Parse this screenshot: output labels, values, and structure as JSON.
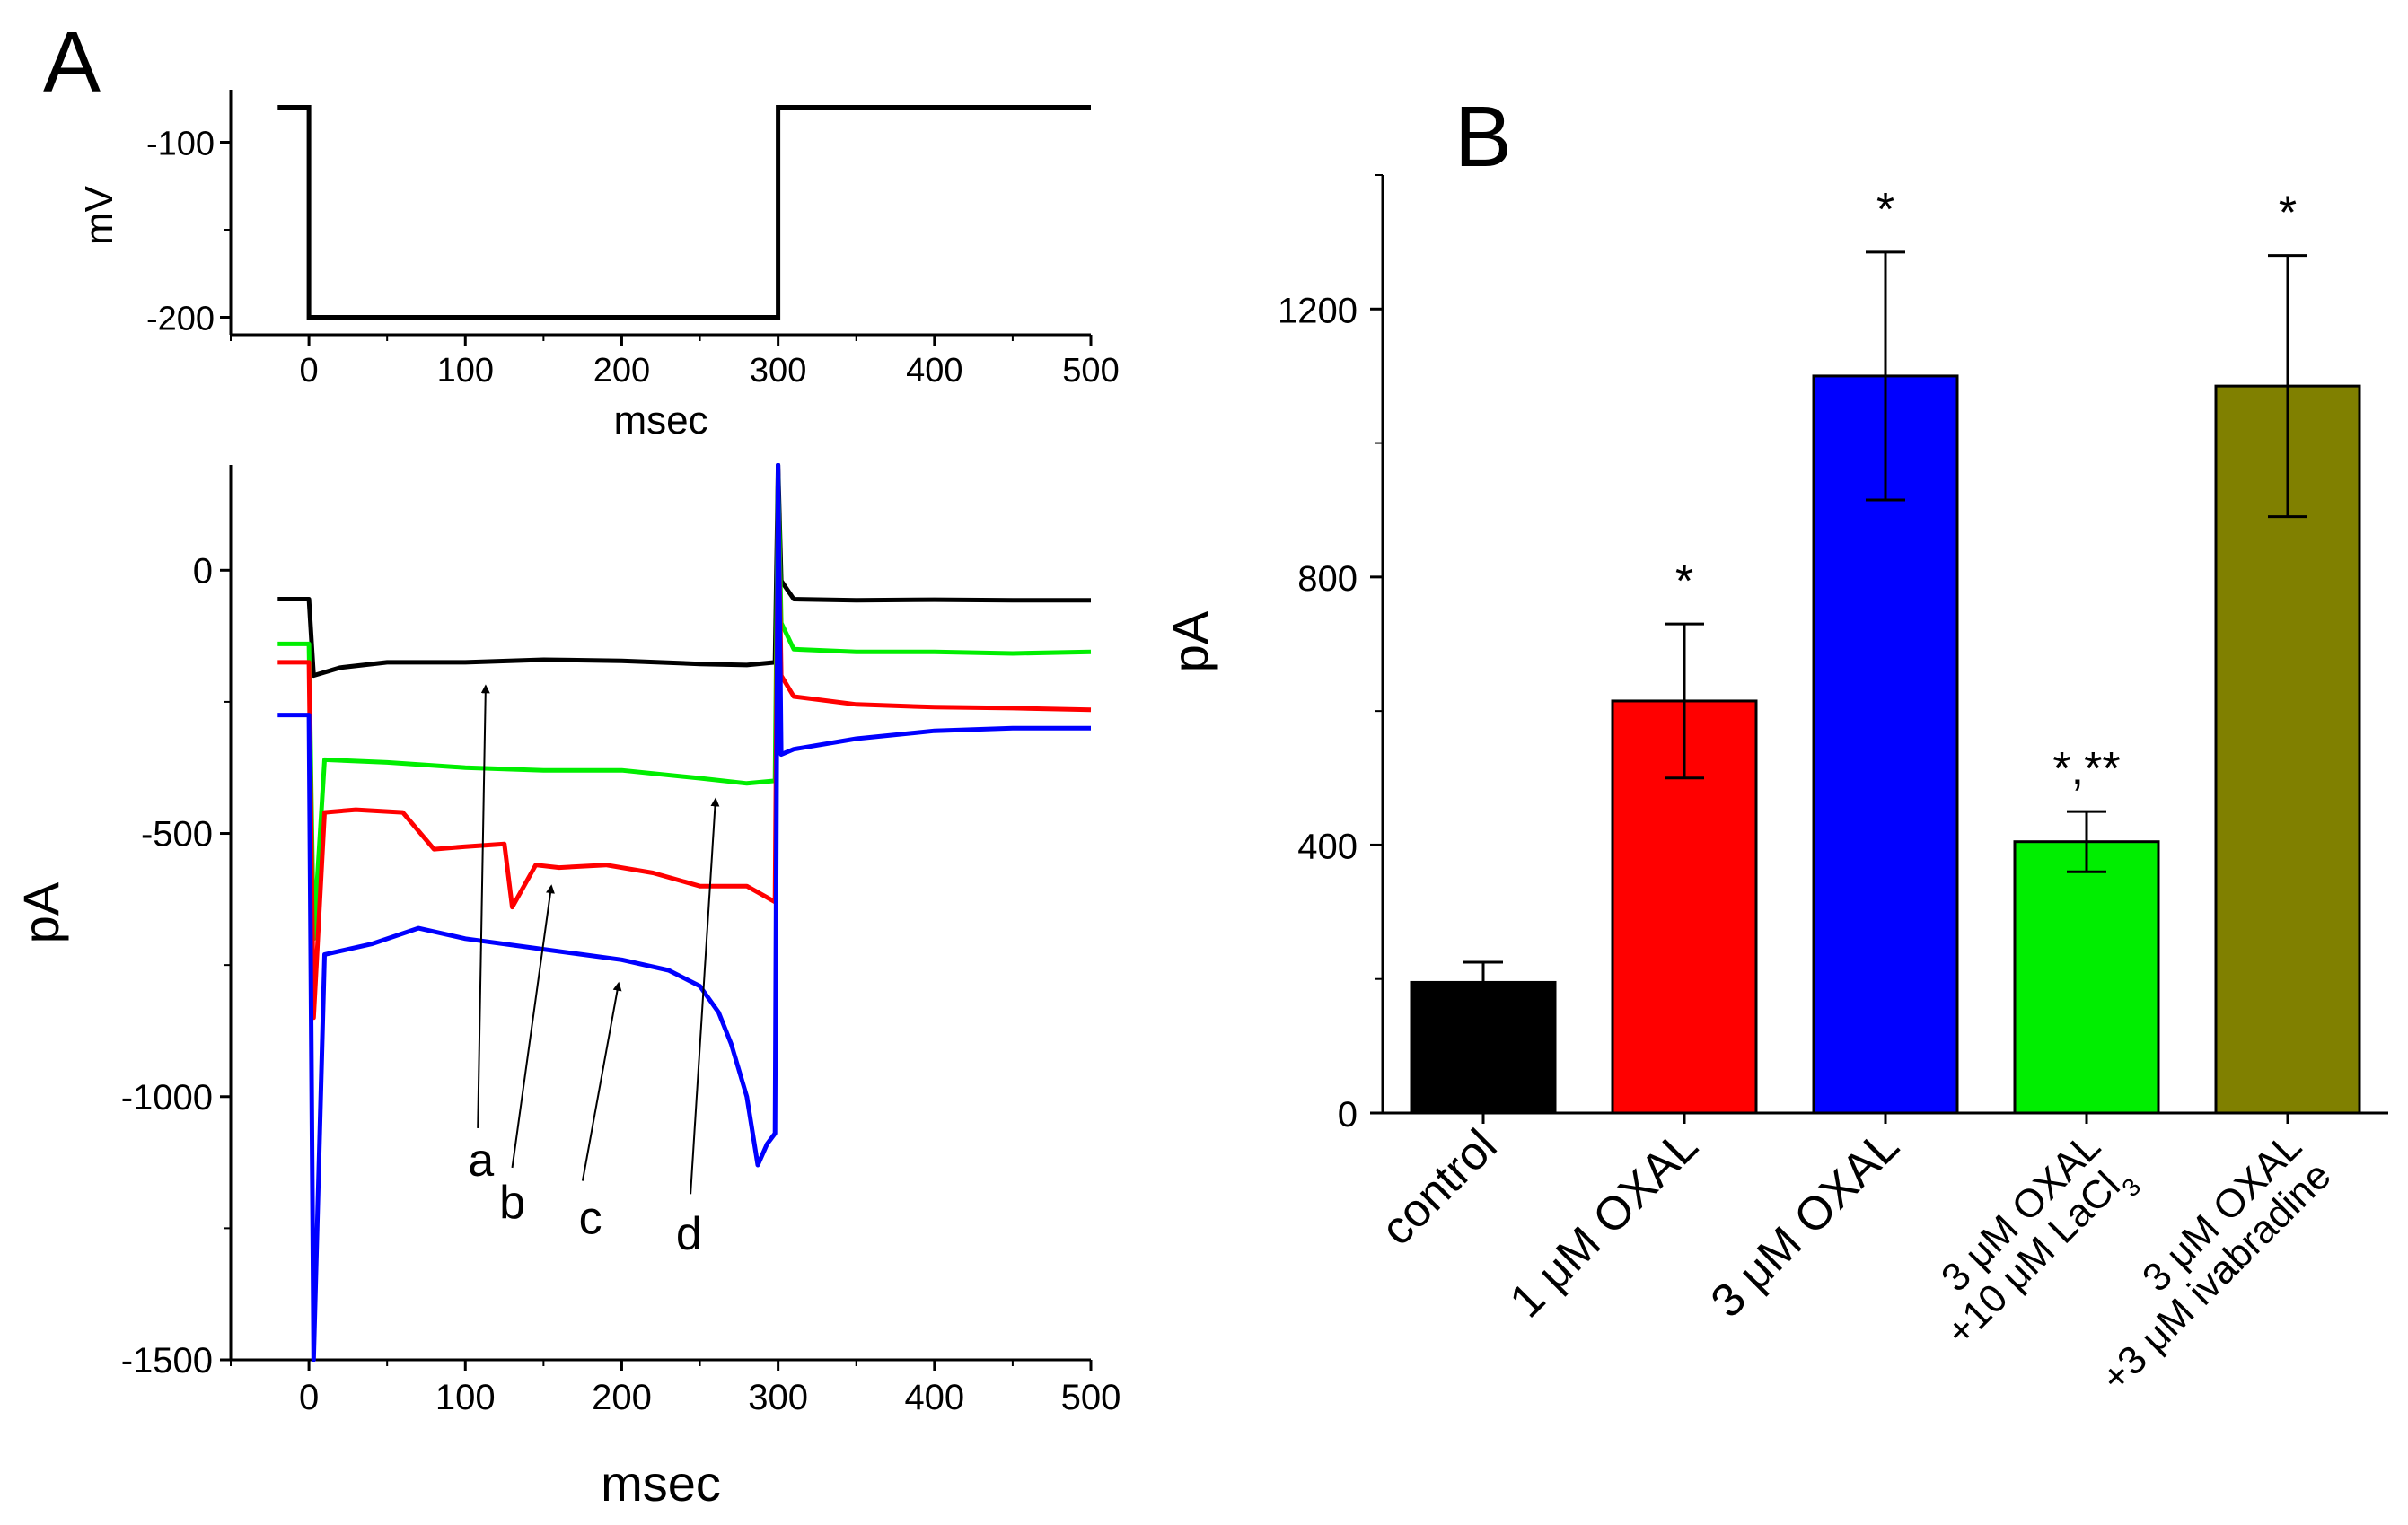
{
  "panel_a_label": "A",
  "panel_b_label": "B",
  "chart_data": [
    {
      "id": "voltage-protocol",
      "type": "line",
      "xlabel": "msec",
      "ylabel": "mV",
      "xlim": [
        -50,
        500
      ],
      "ylim": [
        -210,
        -70
      ],
      "xticks": [
        0,
        100,
        200,
        300,
        400,
        500
      ],
      "yticks": [
        -100,
        -200
      ],
      "series": [
        {
          "color": "#000000",
          "x": [
            -20,
            0,
            0,
            300,
            300,
            500
          ],
          "y": [
            -80,
            -80,
            -200,
            -200,
            -80,
            -80
          ]
        }
      ]
    },
    {
      "id": "current-traces",
      "type": "line",
      "xlabel": "msec",
      "ylabel": "pA",
      "xlim": [
        -50,
        500
      ],
      "ylim": [
        -1500,
        200
      ],
      "xticks": [
        0,
        100,
        200,
        300,
        400,
        500
      ],
      "yticks": [
        0,
        -500,
        -1000,
        -1500
      ],
      "series": [
        {
          "name": "a",
          "color": "#000000",
          "x": [
            -20,
            0,
            3,
            20,
            50,
            100,
            150,
            200,
            250,
            280,
            298,
            300,
            302,
            310,
            350,
            400,
            450,
            500
          ],
          "y": [
            -55,
            -55,
            -200,
            -185,
            -175,
            -175,
            -170,
            -172,
            -178,
            -180,
            -175,
            200,
            -20,
            -55,
            -57,
            -56,
            -57,
            -57
          ]
        },
        {
          "name": "b",
          "color": "#00ee00",
          "x": [
            -20,
            0,
            3,
            10,
            50,
            100,
            150,
            200,
            250,
            280,
            298,
            300,
            302,
            310,
            350,
            400,
            450,
            500
          ],
          "y": [
            -140,
            -140,
            -700,
            -360,
            -365,
            -375,
            -380,
            -380,
            -395,
            -405,
            -400,
            180,
            -100,
            -150,
            -155,
            -155,
            -158,
            -155
          ]
        },
        {
          "name": "c",
          "color": "#ff0000",
          "x": [
            -20,
            0,
            3,
            10,
            30,
            60,
            80,
            100,
            125,
            130,
            145,
            160,
            190,
            220,
            250,
            280,
            298,
            300,
            302,
            310,
            350,
            400,
            450,
            500
          ],
          "y": [
            -175,
            -175,
            -850,
            -460,
            -455,
            -460,
            -530,
            -525,
            -520,
            -640,
            -560,
            -565,
            -560,
            -575,
            -600,
            -600,
            -630,
            150,
            -200,
            -240,
            -255,
            -260,
            -262,
            -265
          ]
        },
        {
          "name": "d",
          "color": "#0000ff",
          "x": [
            -20,
            0,
            3,
            10,
            40,
            70,
            100,
            150,
            200,
            230,
            250,
            262,
            270,
            280,
            287,
            293,
            298,
            300,
            302,
            310,
            350,
            400,
            450,
            500
          ],
          "y": [
            -275,
            -275,
            -1500,
            -730,
            -710,
            -680,
            -700,
            -720,
            -740,
            -760,
            -790,
            -840,
            -900,
            -1000,
            -1130,
            -1090,
            -1070,
            200,
            -350,
            -340,
            -320,
            -305,
            -300,
            -300
          ]
        }
      ],
      "annotations": [
        "a",
        "b",
        "c",
        "d"
      ]
    },
    {
      "id": "current-bars",
      "type": "bar",
      "ylabel": "pA",
      "ylim": [
        0,
        1400
      ],
      "yticks": [
        0,
        400,
        800,
        1200
      ],
      "categories": [
        {
          "lines": [
            "control"
          ]
        },
        {
          "lines": [
            "1 μM OXAL"
          ]
        },
        {
          "lines": [
            "3 μM OXAL"
          ]
        },
        {
          "lines": [
            "3 μM OXAL",
            "+10 μM LaCl"
          ],
          "subscript": "3"
        },
        {
          "lines": [
            "3 μM OXAL",
            "+3 μM ivabradine"
          ]
        }
      ],
      "values": [
        195,
        615,
        1100,
        405,
        1085
      ],
      "errors": [
        30,
        115,
        185,
        45,
        195
      ],
      "colors": [
        "#000000",
        "#ff0000",
        "#0000ff",
        "#00ee00",
        "#808000"
      ],
      "significance": [
        "",
        "*",
        "*",
        "*,**",
        "*"
      ]
    }
  ]
}
